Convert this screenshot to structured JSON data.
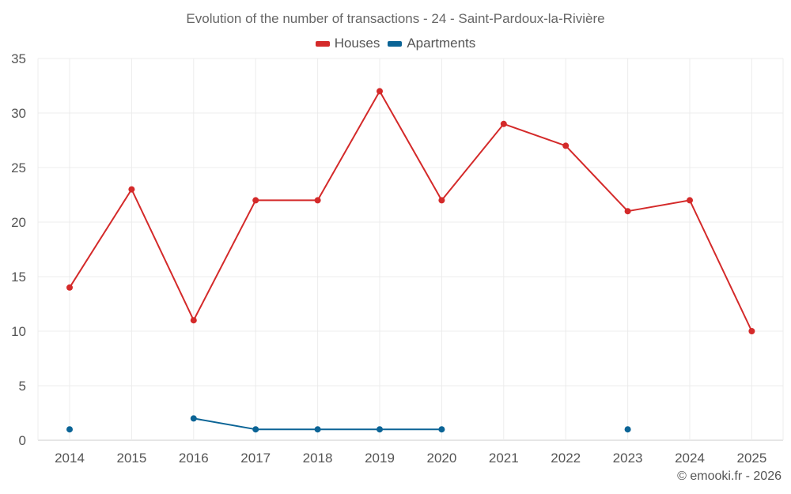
{
  "chart_data": {
    "type": "line",
    "title": "Evolution of the number of transactions - 24 - Saint-Pardoux-la-Rivière",
    "xlabel": "",
    "ylabel": "",
    "categories": [
      "2014",
      "2015",
      "2016",
      "2017",
      "2018",
      "2019",
      "2020",
      "2021",
      "2022",
      "2023",
      "2024",
      "2025"
    ],
    "ylim": [
      0,
      35
    ],
    "yticks": [
      0,
      5,
      10,
      15,
      20,
      25,
      30,
      35
    ],
    "grid": true,
    "legend_position": "top-center",
    "series": [
      {
        "name": "Houses",
        "color": "#d42a2a",
        "values": [
          14,
          23,
          11,
          22,
          22,
          32,
          22,
          29,
          27,
          21,
          22,
          10
        ]
      },
      {
        "name": "Apartments",
        "color": "#0b6496",
        "values": [
          1,
          null,
          2,
          1,
          1,
          1,
          1,
          null,
          null,
          1,
          null,
          null
        ]
      }
    ]
  },
  "credit": "© emooki.fr - 2026"
}
